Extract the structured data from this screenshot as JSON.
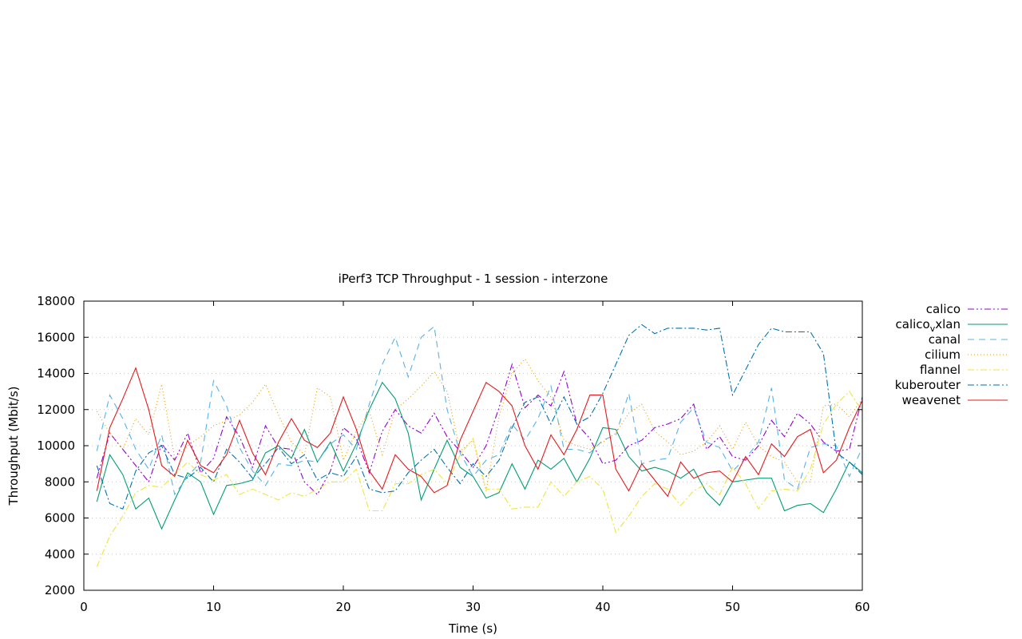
{
  "chart_data": {
    "type": "line",
    "title": "iPerf3 TCP Throughput - 1 session - interzone",
    "xlabel": "Time (s)",
    "ylabel": "Throughput (Mbit/s)",
    "xlim": [
      0,
      60
    ],
    "ylim": [
      2000,
      18000
    ],
    "xticks": [
      0,
      10,
      20,
      30,
      40,
      50,
      60
    ],
    "yticks": [
      2000,
      4000,
      6000,
      8000,
      10000,
      12000,
      14000,
      16000,
      18000
    ],
    "grid": true,
    "legend_position": "outside-right",
    "x": [
      1,
      2,
      3,
      4,
      5,
      6,
      7,
      8,
      9,
      10,
      11,
      12,
      13,
      14,
      15,
      16,
      17,
      18,
      19,
      20,
      21,
      22,
      23,
      24,
      25,
      26,
      27,
      28,
      29,
      30,
      31,
      32,
      33,
      34,
      35,
      36,
      37,
      38,
      39,
      40,
      41,
      42,
      43,
      44,
      45,
      46,
      47,
      48,
      49,
      50,
      51,
      52,
      53,
      54,
      55,
      56,
      57,
      58,
      59,
      60
    ],
    "series": [
      {
        "name": "calico",
        "label_main": "calico",
        "label_sub": "",
        "label_tail": "",
        "color": "#9400d3",
        "dash": "8,3,2,3,2,3",
        "values": [
          8200,
          10700,
          9800,
          8900,
          8000,
          10100,
          9200,
          10700,
          8500,
          9300,
          11600,
          10500,
          8800,
          11100,
          9900,
          9800,
          8000,
          7300,
          8600,
          11000,
          10400,
          8500,
          10800,
          12000,
          11100,
          10700,
          11800,
          10500,
          9700,
          8800,
          10000,
          12100,
          14500,
          12100,
          12800,
          12200,
          14100,
          11200,
          10400,
          9000,
          9200,
          10000,
          10300,
          11000,
          11200,
          11500,
          12300,
          9800,
          10500,
          9400,
          9200,
          10000,
          11400,
          10500,
          11800,
          11200,
          10200,
          9700,
          9800,
          12700
        ]
      },
      {
        "name": "calico_vxlan",
        "label_main": "calico",
        "label_sub": "v",
        "label_tail": "xlan",
        "color": "#009e73",
        "dash": "",
        "values": [
          6900,
          9500,
          8400,
          6500,
          7100,
          5400,
          7000,
          8500,
          8000,
          6200,
          7800,
          7900,
          8100,
          9600,
          10000,
          9300,
          10900,
          9100,
          10200,
          8600,
          10100,
          12000,
          13500,
          12600,
          10700,
          7000,
          8700,
          10300,
          8800,
          8300,
          7100,
          7400,
          9000,
          7600,
          9200,
          8700,
          9300,
          8000,
          9300,
          11000,
          10900,
          9400,
          8600,
          8800,
          8600,
          8200,
          8700,
          7400,
          6700,
          8000,
          8100,
          8200,
          8200,
          6400,
          6700,
          6800,
          6300,
          7600,
          9100,
          8500
        ]
      },
      {
        "name": "canal",
        "label_main": "canal",
        "label_sub": "",
        "label_tail": "",
        "color": "#56b4e9",
        "dash": "8,6",
        "values": [
          9700,
          12800,
          11500,
          9800,
          8700,
          10600,
          7300,
          8300,
          9100,
          13600,
          12200,
          9900,
          8600,
          7800,
          9000,
          8900,
          9200,
          9100,
          10100,
          10600,
          9800,
          12300,
          14500,
          16000,
          13800,
          16000,
          16600,
          12000,
          9600,
          8300,
          9200,
          9500,
          11200,
          10300,
          11500,
          13300,
          9800,
          9800,
          9600,
          10300,
          10600,
          12900,
          9000,
          9200,
          9300,
          11300,
          12100,
          10200,
          9900,
          8600,
          9300,
          10200,
          13200,
          8100,
          7600,
          9900,
          10100,
          10000,
          8300,
          9900
        ]
      },
      {
        "name": "cilium",
        "label_main": "cilium",
        "label_sub": "",
        "label_tail": "",
        "color": "#e69f00",
        "dash": "1,3",
        "values": [
          11900,
          10700,
          9800,
          11500,
          10600,
          13400,
          9300,
          10000,
          10500,
          11100,
          11400,
          11700,
          12400,
          13400,
          11700,
          10200,
          9500,
          13200,
          12700,
          9200,
          10800,
          11900,
          9500,
          12000,
          12600,
          13300,
          14100,
          13000,
          9700,
          10300,
          7500,
          11600,
          14000,
          14800,
          13600,
          12700,
          10300,
          10000,
          9800,
          10200,
          10700,
          11800,
          12300,
          10800,
          10200,
          9500,
          9700,
          10200,
          11100,
          9800,
          11300,
          10000,
          9400,
          9100,
          8000,
          8000,
          12200,
          12300,
          11600,
          12600
        ]
      },
      {
        "name": "flannel",
        "label_main": "flannel",
        "label_sub": "",
        "label_tail": "",
        "color": "#f0e442",
        "dash": "8,3,2,3",
        "values": [
          3300,
          5000,
          6100,
          7400,
          7800,
          7700,
          8400,
          9100,
          8400,
          8100,
          8400,
          7300,
          7600,
          7300,
          7000,
          7400,
          7200,
          7600,
          8000,
          8000,
          8700,
          6400,
          6400,
          7900,
          7900,
          8400,
          8700,
          7900,
          9500,
          10400,
          7600,
          7600,
          6500,
          6600,
          6600,
          8000,
          7200,
          8000,
          8300,
          7600,
          5200,
          6100,
          7200,
          7900,
          7600,
          6700,
          7500,
          7900,
          7300,
          8800,
          7900,
          6500,
          7500,
          7600,
          7500,
          8700,
          11200,
          12300,
          13000,
          11900
        ]
      },
      {
        "name": "kuberouter",
        "label_main": "kuberouter",
        "label_sub": "",
        "label_tail": "",
        "color": "#0072b2",
        "dash": "8,3,2,3",
        "values": [
          8900,
          6800,
          6500,
          8600,
          9600,
          10000,
          8400,
          8200,
          8800,
          8000,
          9800,
          9100,
          8200,
          9000,
          9900,
          9000,
          9500,
          8100,
          8500,
          8300,
          9400,
          7600,
          7400,
          7500,
          8500,
          9200,
          9800,
          8800,
          7900,
          9000,
          8300,
          9200,
          11000,
          12400,
          12700,
          11200,
          12700,
          11200,
          11600,
          12900,
          14500,
          16100,
          16700,
          16200,
          16500,
          16500,
          16500,
          16400,
          16500,
          12800,
          14200,
          15600,
          16500,
          16300,
          16300,
          16300,
          15100,
          9600,
          9100,
          8400
        ]
      },
      {
        "name": "weavenet",
        "label_main": "weavenet",
        "label_sub": "",
        "label_tail": "",
        "color": "#e41a1c",
        "dash": "",
        "values": [
          7500,
          11000,
          12600,
          14300,
          12000,
          8900,
          8300,
          10300,
          8900,
          8500,
          9500,
          11400,
          9600,
          8400,
          10200,
          11500,
          10300,
          9900,
          10700,
          12700,
          10900,
          8600,
          7600,
          9500,
          8700,
          8300,
          7400,
          7800,
          10300,
          11900,
          13500,
          13000,
          12200,
          10000,
          8700,
          10600,
          9500,
          10900,
          12800,
          12800,
          8700,
          7500,
          9000,
          8100,
          7200,
          9100,
          8200,
          8500,
          8600,
          8000,
          9400,
          8400,
          10100,
          9400,
          10500,
          10900,
          8500,
          9200,
          11000,
          12500
        ]
      }
    ]
  }
}
